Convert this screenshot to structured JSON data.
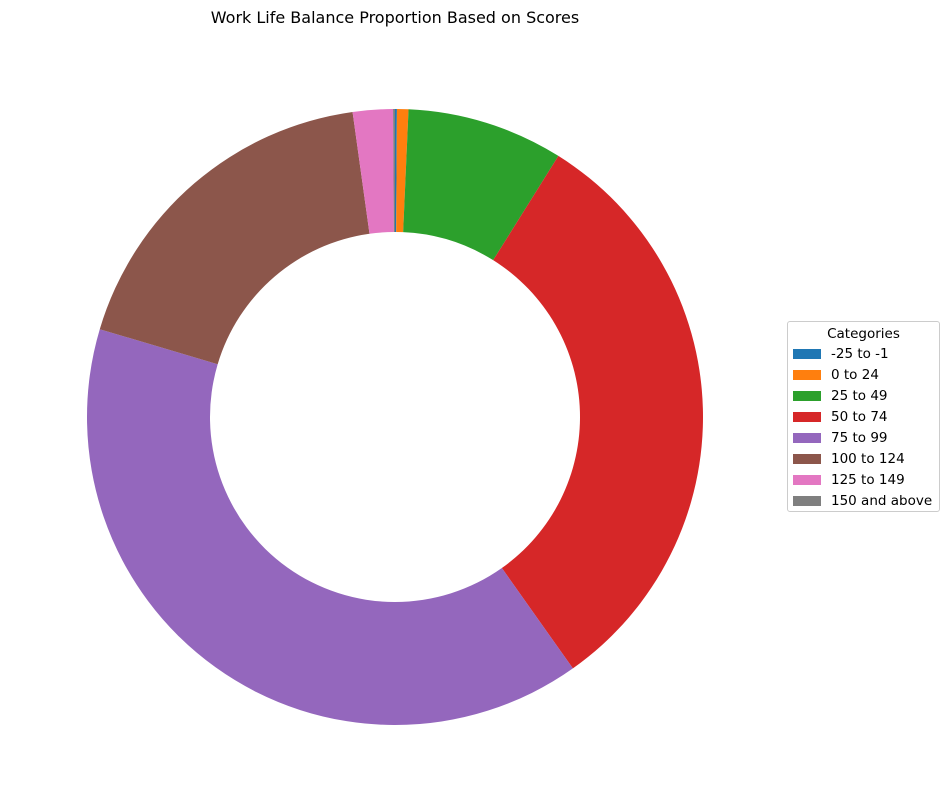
{
  "chart_data": {
    "type": "pie",
    "title": "Work Life Balance Proportion Based on Scores",
    "categories": [
      "-25 to -1",
      "0 to 24",
      "25 to 49",
      "50 to 74",
      "75 to 99",
      "100 to 124",
      "125 to 149",
      "150 and above"
    ],
    "values": [
      0.1,
      0.6,
      8.2,
      31.3,
      39.4,
      18.2,
      2.1,
      0.1
    ],
    "colors": [
      "#1f77b4",
      "#ff7f0e",
      "#2ca02c",
      "#d62728",
      "#9467bd",
      "#8c564b",
      "#e377c2",
      "#7f7f7f"
    ],
    "donut": true,
    "legend": {
      "title": "Categories",
      "placement": "center-right"
    }
  }
}
